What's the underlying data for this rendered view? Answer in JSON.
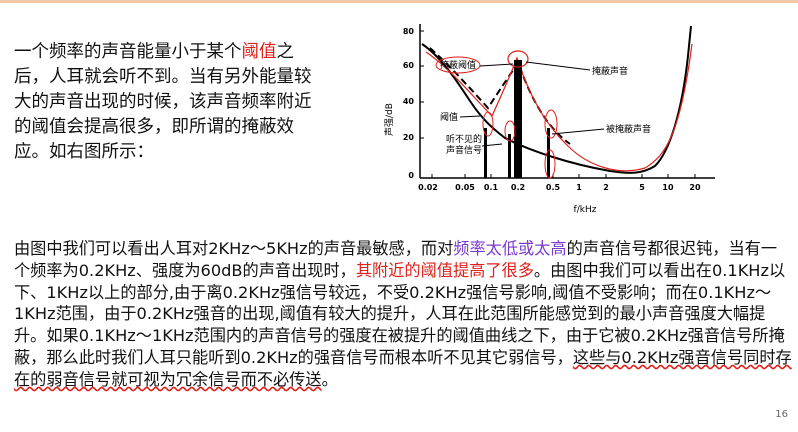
{
  "intro": {
    "part1": "一个频率的声音能量小于某个",
    "highlight": "阈值",
    "part2": "之后，人耳就会听不到。当有另外能量较大的声音出现的时候，该声音频率附近的阈值会提高很多，即所谓的掩蔽效应。如右图所示："
  },
  "figure": {
    "ylabel": "声强/dB",
    "xlabel": "f/kHz",
    "y_ticks": [
      "80",
      "60",
      "40",
      "20",
      "0"
    ],
    "x_ticks": [
      "0.02",
      "0.05",
      "0.1",
      "0.2",
      "0.5",
      "1",
      "2",
      "5",
      "10",
      "20"
    ],
    "labels": {
      "masked_threshold": "掩蔽阈值",
      "masking_tone": "掩蔽声音",
      "threshold": "阈值",
      "inaudible": "听不见的\n声音信号",
      "masked_tone": "被掩蔽声音"
    }
  },
  "body": {
    "s1": "由图中我们可以看出人耳对2KHz～5KHz的声音最敏感，而对",
    "s2": "频率太低或太高",
    "s3": "的声音信号都很迟钝，当有一个频率为0.2KHz、强度为60dB的声音出现时，",
    "s4": "其附近的阈值提高了很多",
    "s5": "。由图中我们可以看出在0.1KHz以下、1KHz以上的部分,由于离0.2KHz强信号较远，不受0.2KHz强信号影响,阈值不受影响；而在0.1KHz～1KHz范围，由于0.2KHz强音的出现,阈值有较大的提升，人耳在此范围所能感觉到的最小声音强度大幅提升。如果0.1KHz～1KHz范围内的声音信号的强度在被提升的阈值曲线之下，由于它被0.2KHz强音信号所掩蔽，那么此时我们人耳只能听到0.2KHz的强音信号而根本听不见其它弱信号，",
    "s6": "这些与0.2KHz强音信号同时存在的弱音信号就可视为冗余信号而不必传送",
    "s7": "。"
  },
  "page_number": "16"
}
